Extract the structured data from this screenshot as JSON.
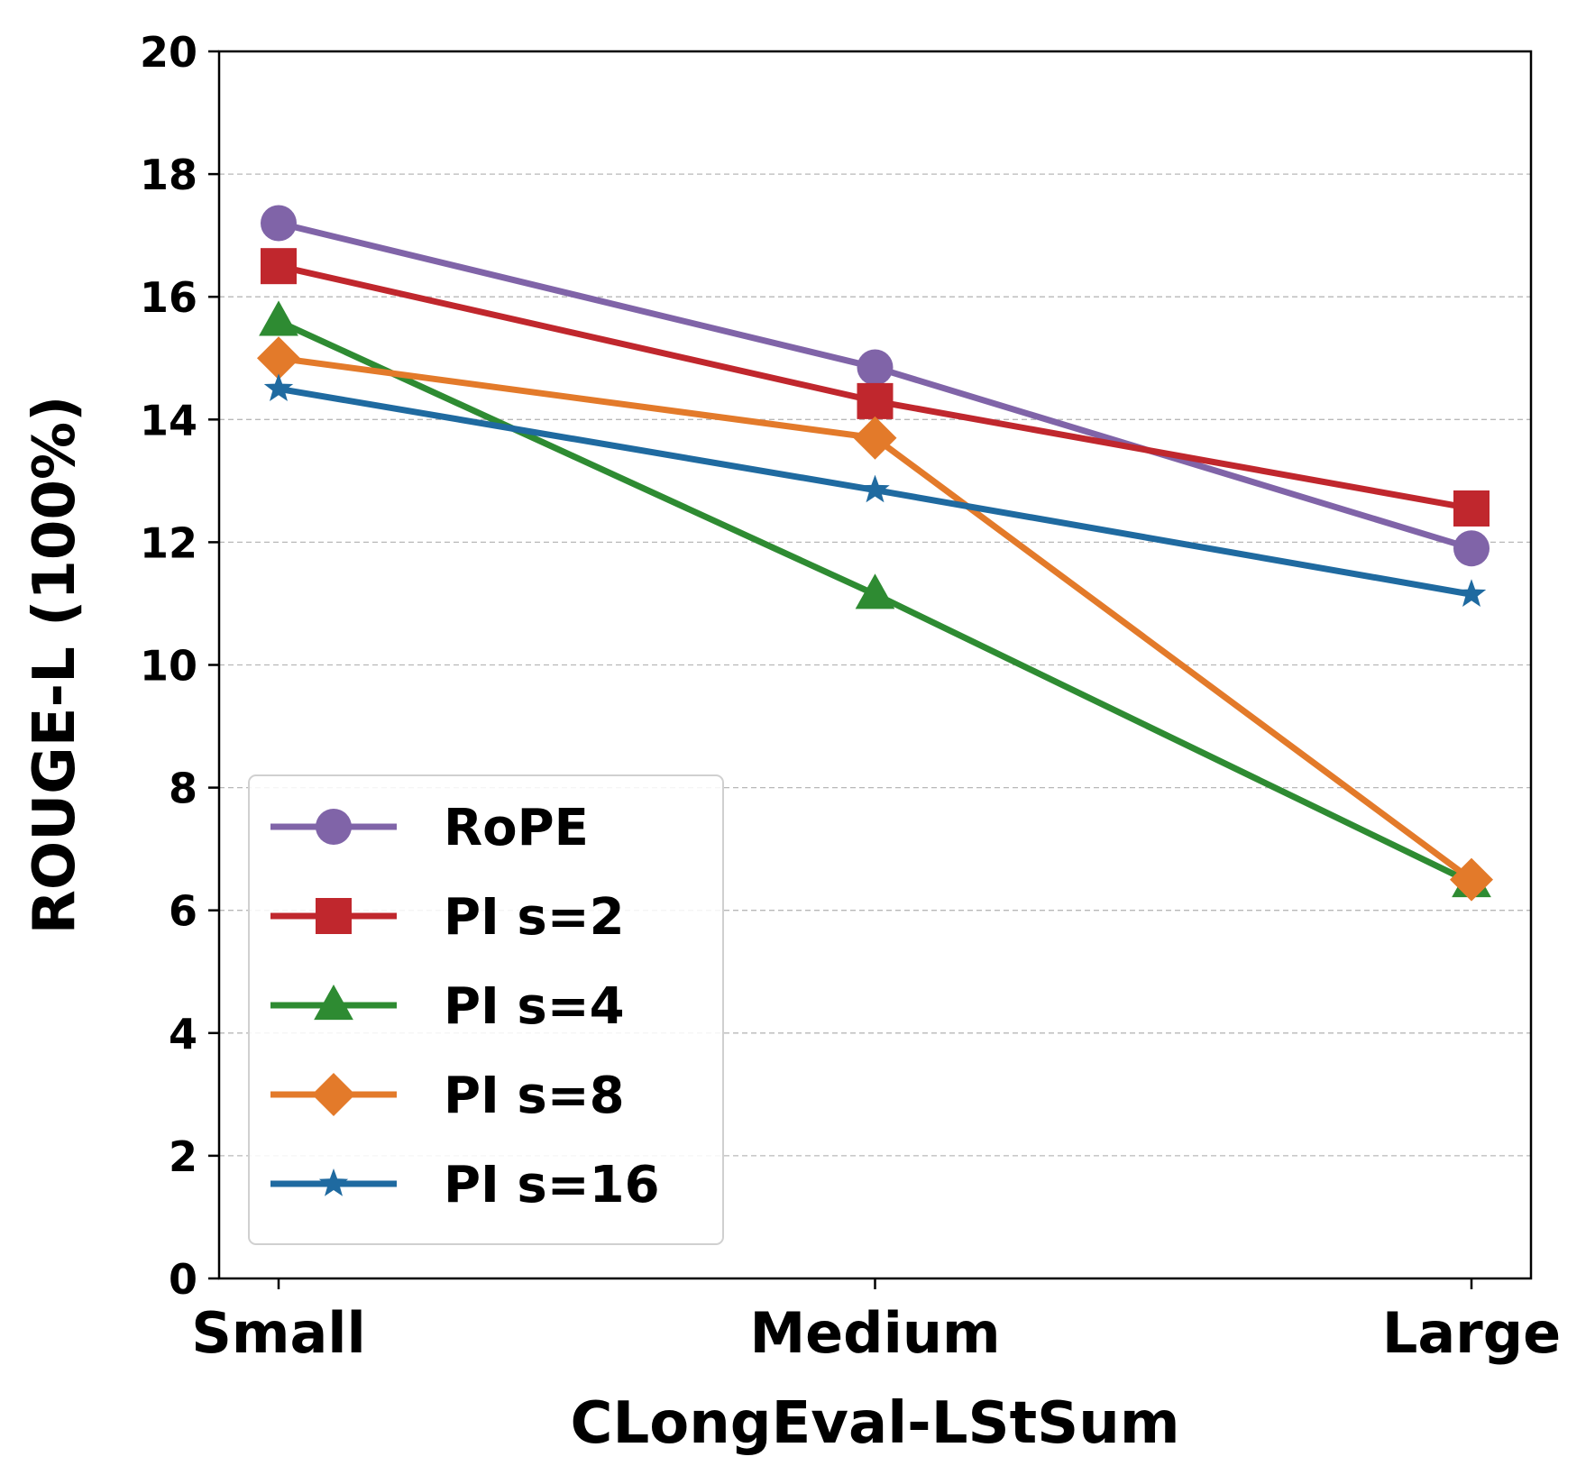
{
  "chart_data": {
    "type": "line",
    "xlabel": "CLongEval-LStSum",
    "ylabel": "ROUGE-L (100%)",
    "categories": [
      "Small",
      "Medium",
      "Large"
    ],
    "ylim": [
      0,
      20
    ],
    "yticks": [
      0,
      2,
      4,
      6,
      8,
      10,
      12,
      14,
      16,
      18,
      20
    ],
    "grid": "horizontal dashed",
    "legend_position": "lower-left",
    "series": [
      {
        "name": "RoPE",
        "values": [
          17.2,
          14.85,
          11.9
        ],
        "color": "#8064a8",
        "marker": "circle"
      },
      {
        "name": "PI s=2",
        "values": [
          16.5,
          14.3,
          12.55
        ],
        "color": "#c0272d",
        "marker": "square"
      },
      {
        "name": "PI s=4",
        "values": [
          15.6,
          11.15,
          6.45
        ],
        "color": "#2e8b32",
        "marker": "triangle"
      },
      {
        "name": "PI s=8",
        "values": [
          15.0,
          13.7,
          6.5
        ],
        "color": "#e37a2a",
        "marker": "diamond"
      },
      {
        "name": "PI s=16",
        "values": [
          14.5,
          12.85,
          11.15
        ],
        "color": "#1f6aa0",
        "marker": "star"
      }
    ]
  }
}
